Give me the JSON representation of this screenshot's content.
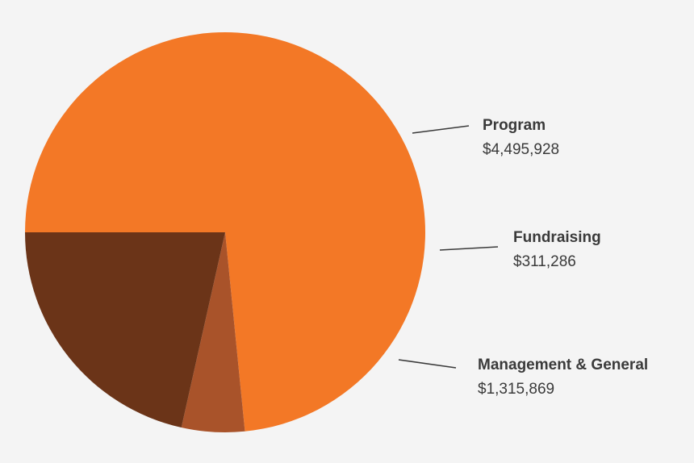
{
  "chart_data": {
    "type": "pie",
    "title": "",
    "start_angle_deg": 180,
    "direction": "clockwise",
    "slices": [
      {
        "name": "Program",
        "value": 4495928,
        "label": "$4,495,928",
        "color": "#f37826"
      },
      {
        "name": "Fundraising",
        "value": 311286,
        "label": "$311,286",
        "color": "#a9532a"
      },
      {
        "name": "Management & General",
        "value": 1315869,
        "label": "$1,315,869",
        "color": "#6b3418"
      }
    ]
  }
}
